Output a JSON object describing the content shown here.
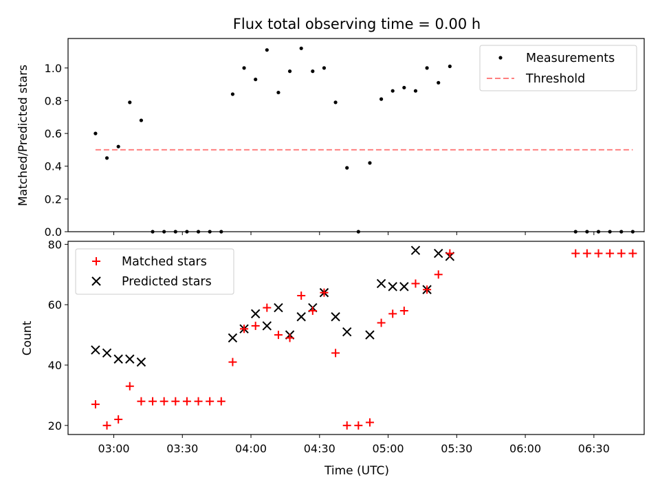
{
  "colors": {
    "measurement": "#000000",
    "threshold": "#ff7f7f",
    "matched": "#ff0000",
    "predicted": "#000000"
  },
  "chart_data": [
    {
      "type": "scatter",
      "title": "Flux total observing time = 0.00 h",
      "xlabel": "",
      "ylabel": "Matched/Predicted stars",
      "xlim": [
        "02:40",
        "06:52"
      ],
      "ylim": [
        0,
        1.18
      ],
      "yticks": [
        "0.0",
        "0.2",
        "0.4",
        "0.6",
        "0.8",
        "1.0"
      ],
      "legend": {
        "position": "top-right",
        "entries": [
          "Measurements",
          "Threshold"
        ]
      },
      "series": [
        {
          "name": "Measurements",
          "x": [
            "02:52",
            "02:57",
            "03:02",
            "03:07",
            "03:12",
            "03:17",
            "03:22",
            "03:27",
            "03:32",
            "03:37",
            "03:42",
            "03:47",
            "03:52",
            "03:57",
            "04:02",
            "04:07",
            "04:12",
            "04:17",
            "04:22",
            "04:27",
            "04:32",
            "04:37",
            "04:42",
            "04:47",
            "04:52",
            "04:57",
            "05:02",
            "05:07",
            "05:12",
            "05:17",
            "05:22",
            "05:27",
            "06:22",
            "06:27",
            "06:32",
            "06:37",
            "06:42",
            "06:47"
          ],
          "values": [
            0.6,
            0.45,
            0.52,
            0.79,
            0.68,
            0.0,
            0.0,
            0.0,
            0.0,
            0.0,
            0.0,
            0.0,
            0.84,
            1.0,
            0.93,
            1.11,
            0.85,
            0.98,
            1.12,
            0.98,
            1.0,
            0.79,
            0.39,
            0.0,
            0.42,
            0.81,
            0.86,
            0.88,
            0.86,
            1.0,
            0.91,
            1.01,
            0.0,
            0.0,
            0.0,
            0.0,
            0.0,
            0.0
          ]
        },
        {
          "name": "Threshold",
          "x": [
            "02:52",
            "06:47"
          ],
          "values": [
            0.5,
            0.5
          ]
        }
      ]
    },
    {
      "type": "scatter",
      "title": "",
      "xlabel": "Time (UTC)",
      "ylabel": "Count",
      "xlim": [
        "02:40",
        "06:52"
      ],
      "ylim": [
        17,
        81
      ],
      "yticks": [
        "20",
        "40",
        "60",
        "80"
      ],
      "xticks": [
        "03:00",
        "03:30",
        "04:00",
        "04:30",
        "05:00",
        "05:30",
        "06:00",
        "06:30"
      ],
      "legend": {
        "position": "top-left",
        "entries": [
          "Matched stars",
          "Predicted stars"
        ]
      },
      "series": [
        {
          "name": "Matched stars",
          "x": [
            "02:52",
            "02:57",
            "03:02",
            "03:07",
            "03:12",
            "03:17",
            "03:22",
            "03:27",
            "03:32",
            "03:37",
            "03:42",
            "03:47",
            "03:52",
            "03:57",
            "04:02",
            "04:07",
            "04:12",
            "04:17",
            "04:22",
            "04:27",
            "04:32",
            "04:37",
            "04:42",
            "04:47",
            "04:52",
            "04:57",
            "05:02",
            "05:07",
            "05:12",
            "05:17",
            "05:22",
            "05:27",
            "06:22",
            "06:27",
            "06:32",
            "06:37",
            "06:42",
            "06:47"
          ],
          "values": [
            27,
            20,
            22,
            33,
            28,
            28,
            28,
            28,
            28,
            28,
            28,
            28,
            41,
            52,
            53,
            59,
            50,
            49,
            63,
            58,
            64,
            44,
            20,
            20,
            21,
            54,
            57,
            58,
            67,
            65,
            70,
            77,
            77,
            77,
            77,
            77,
            77,
            77
          ]
        },
        {
          "name": "Predicted stars",
          "x": [
            "02:52",
            "02:57",
            "03:02",
            "03:07",
            "03:12",
            "03:52",
            "03:57",
            "04:02",
            "04:07",
            "04:12",
            "04:17",
            "04:22",
            "04:27",
            "04:32",
            "04:37",
            "04:42",
            "04:52",
            "04:57",
            "05:02",
            "05:07",
            "05:12",
            "05:17",
            "05:22",
            "05:27"
          ],
          "values": [
            45,
            44,
            42,
            42,
            41,
            49,
            52,
            57,
            53,
            59,
            50,
            56,
            59,
            64,
            56,
            51,
            50,
            67,
            66,
            66,
            78,
            65,
            77,
            76
          ]
        }
      ]
    }
  ]
}
